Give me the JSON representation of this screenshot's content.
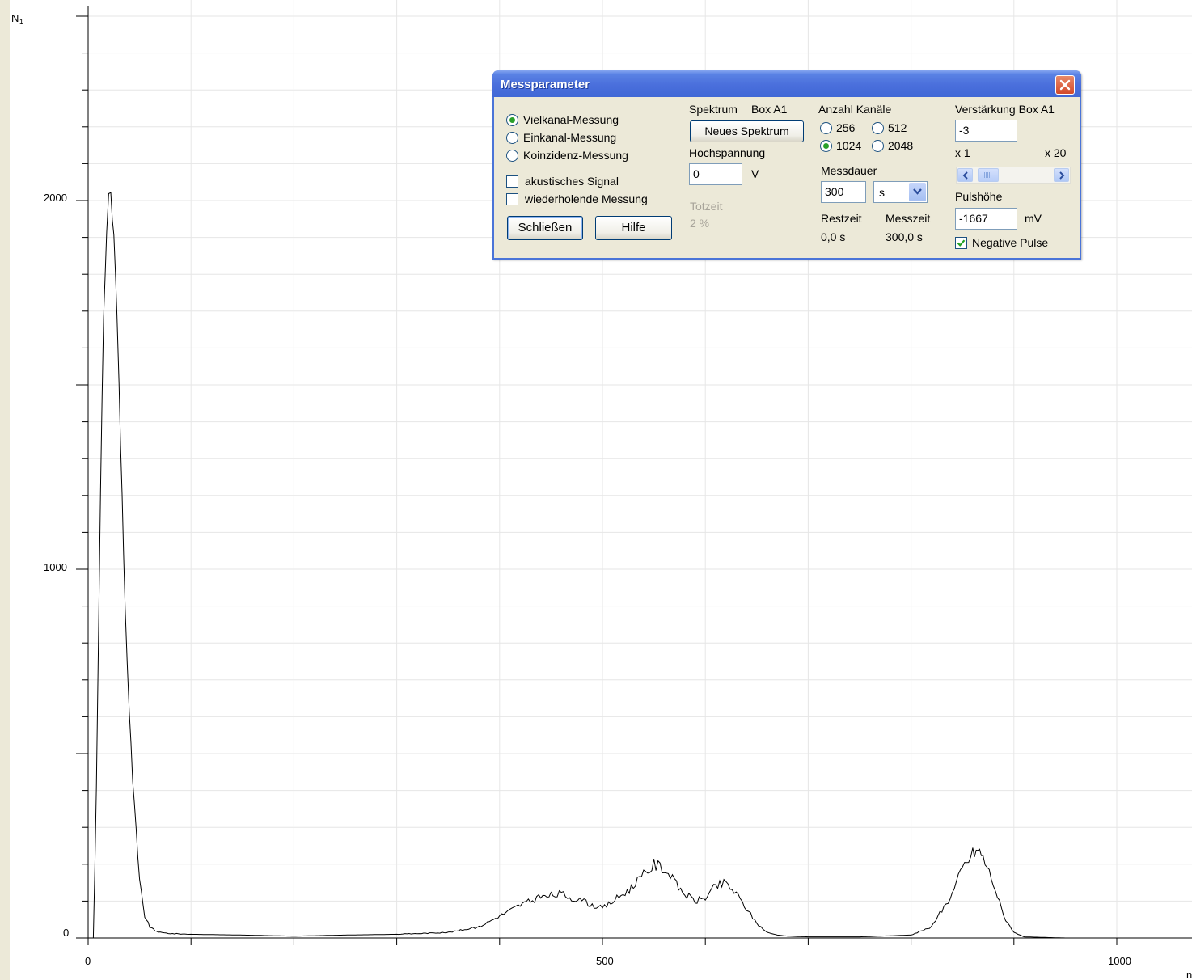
{
  "chart": {
    "y_axis_label": "N",
    "y_axis_label_sub": "1",
    "x_axis_label": "n",
    "y_ticks": [
      "2000",
      "1000",
      "0"
    ],
    "x_ticks": [
      "0",
      "500",
      "1000"
    ],
    "line_color": "#000000",
    "grid_color": "#e6e6e6"
  },
  "chart_data": {
    "type": "line",
    "title": "",
    "xlabel": "n",
    "ylabel": "N1",
    "xlim": [
      0,
      1070
    ],
    "ylim": [
      0,
      2500
    ],
    "grid": true,
    "legend": "none",
    "series": [
      {
        "x": [
          0,
          5,
          8,
          12,
          15,
          18,
          20,
          22,
          25,
          28,
          30,
          33,
          36,
          40,
          45,
          50,
          55,
          60,
          65,
          70,
          80,
          100,
          150,
          200,
          250,
          300,
          350,
          380,
          400,
          420,
          440,
          460,
          470,
          480,
          490,
          500,
          510,
          520,
          530,
          540,
          550,
          560,
          570,
          580,
          590,
          600,
          610,
          620,
          630,
          640,
          650,
          660,
          670,
          680,
          700,
          750,
          800,
          820,
          840,
          850,
          860,
          865,
          870,
          880,
          890,
          900,
          910,
          950,
          1000,
          1020
        ],
        "y": [
          0,
          0,
          400,
          1200,
          1700,
          1900,
          2000,
          2020,
          1900,
          1700,
          1500,
          1200,
          900,
          600,
          350,
          150,
          60,
          30,
          20,
          15,
          12,
          10,
          8,
          5,
          8,
          10,
          15,
          30,
          60,
          90,
          110,
          120,
          110,
          100,
          90,
          80,
          100,
          120,
          140,
          170,
          200,
          190,
          150,
          120,
          100,
          110,
          140,
          150,
          120,
          80,
          40,
          15,
          8,
          5,
          3,
          3,
          8,
          30,
          120,
          190,
          230,
          240,
          220,
          150,
          60,
          15,
          3,
          0,
          0,
          0
        ]
      }
    ]
  },
  "dialog": {
    "title": "Messparameter",
    "mode_options": [
      "Vielkanal-Messung",
      "Einkanal-Messung",
      "Koinzidenz-Messung"
    ],
    "mode_selected": 0,
    "akustisches_signal": "akustisches Signal",
    "wiederholende_messung": "wiederholende Messung",
    "close_button": "Schließen",
    "help_button": "Hilfe",
    "spektrum_label": "Spektrum",
    "spektrum_box": "Box A1",
    "neues_spektrum_button": "Neues Spektrum",
    "hochspannung_label": "Hochspannung",
    "hochspannung_value": "0",
    "hochspannung_unit": "V",
    "totzeit_label": "Totzeit",
    "totzeit_value": "2 %",
    "kanaele_label": "Anzahl Kanäle",
    "kanaele_options": [
      "256",
      "512",
      "1024",
      "2048"
    ],
    "kanaele_selected": "1024",
    "messdauer_label": "Messdauer",
    "messdauer_value": "300",
    "messdauer_unit": "s",
    "restzeit_label": "Restzeit",
    "restzeit_value": "0,0 s",
    "messzeit_label": "Messzeit",
    "messzeit_value": "300,0 s",
    "verstaerkung_label": "Verstärkung Box A1",
    "verstaerkung_value": "-3",
    "scale_min": "x 1",
    "scale_max": "x 20",
    "gain_slider_fraction": 0.05,
    "pulshoehe_label": "Pulshöhe",
    "pulshoehe_value": "-1667",
    "pulshoehe_unit": "mV",
    "negative_pulse": "Negative Pulse",
    "negative_pulse_checked": true
  }
}
